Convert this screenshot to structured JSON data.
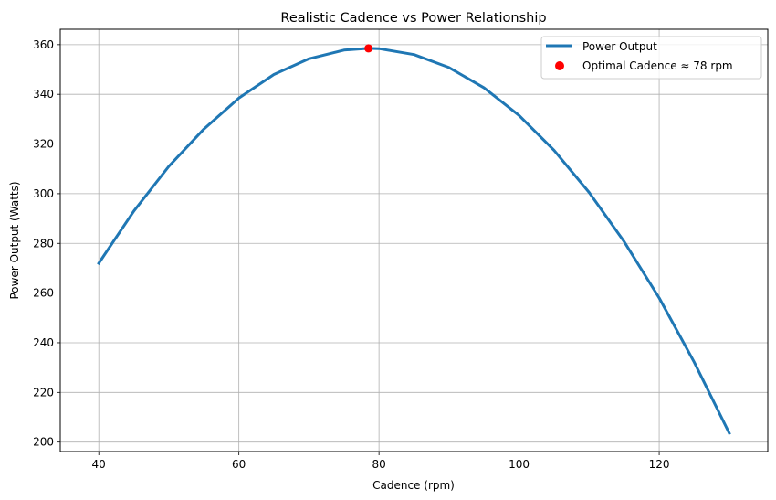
{
  "chart_data": {
    "type": "line",
    "title": "Realistic Cadence vs Power Relationship",
    "xlabel": "Cadence (rpm)",
    "ylabel": "Power Output (Watts)",
    "xlim": [
      34.5,
      135.5
    ],
    "ylim": [
      196.2,
      366.2
    ],
    "xticks": [
      40,
      60,
      80,
      100,
      120
    ],
    "yticks": [
      200,
      220,
      240,
      260,
      280,
      300,
      320,
      340,
      360
    ],
    "grid": true,
    "legend_position": "upper right",
    "series": [
      {
        "name": "Power Output",
        "type": "line",
        "color": "#1f77b4",
        "x": [
          40,
          45,
          50,
          55,
          60,
          65,
          70,
          75,
          78.5,
          80,
          85,
          90,
          95,
          100,
          105,
          110,
          115,
          120,
          125,
          130
        ],
        "values": [
          272,
          293,
          311,
          326,
          338.5,
          348,
          354.3,
          357.8,
          358.5,
          358.4,
          356,
          350.8,
          342.6,
          331.5,
          317.4,
          300.5,
          280.7,
          258,
          232.2,
          203.6
        ]
      },
      {
        "name": "Optimal Cadence ≈ 78 rpm",
        "type": "scatter",
        "color": "#ff0000",
        "x": [
          78.5
        ],
        "values": [
          358.5
        ]
      }
    ]
  },
  "legend": {
    "items": [
      {
        "label": "Power Output"
      },
      {
        "label": "Optimal Cadence ≈ 78 rpm"
      }
    ]
  }
}
